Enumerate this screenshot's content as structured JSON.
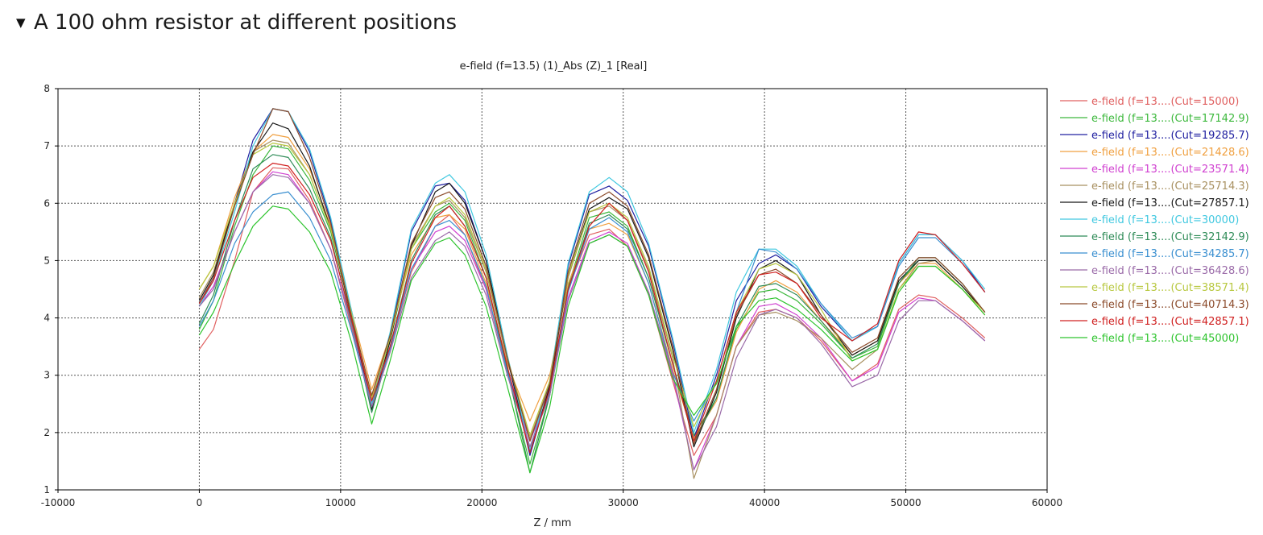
{
  "section": {
    "toggle_icon": "triangle-down-icon",
    "toggle_glyph": "▼",
    "title": "A 100 ohm resistor at different positions"
  },
  "chart_data": {
    "type": "line",
    "title": "e-field (f=13.5) (1)_Abs (Z)_1 [Real]",
    "xlabel": "Z / mm",
    "ylabel": "",
    "xlim": [
      -10000,
      60000
    ],
    "ylim": [
      1,
      8
    ],
    "xticks": [
      -10000,
      0,
      10000,
      20000,
      30000,
      40000,
      50000,
      60000
    ],
    "yticks": [
      1,
      2,
      3,
      4,
      5,
      6,
      7,
      8
    ],
    "grid": true,
    "legend_position": "right",
    "x": [
      0,
      1000,
      2500,
      3800,
      5200,
      6300,
      7800,
      9300,
      10800,
      12200,
      13500,
      15000,
      16700,
      17700,
      18800,
      20300,
      21800,
      23400,
      24800,
      26100,
      27600,
      29000,
      30300,
      31800,
      33500,
      35000,
      36600,
      38000,
      39600,
      40800,
      42300,
      44000,
      46200,
      48000,
      49500,
      50900,
      52100,
      54000,
      55600
    ],
    "series": [
      {
        "name": "e-field (f=13....(Cut=15000)",
        "color": "#e06060",
        "values": [
          3.45,
          3.8,
          5.0,
          6.2,
          6.62,
          6.6,
          6.05,
          5.2,
          3.8,
          2.55,
          3.45,
          4.8,
          5.6,
          5.8,
          5.45,
          4.5,
          3.05,
          1.85,
          2.8,
          4.5,
          5.45,
          5.55,
          5.25,
          4.4,
          2.9,
          1.6,
          2.3,
          3.5,
          4.1,
          4.15,
          4.0,
          3.6,
          2.9,
          3.2,
          4.15,
          4.4,
          4.35,
          4.0,
          3.65
        ]
      },
      {
        "name": "e-field (f=13....(Cut=17142.9)",
        "color": "#3cb83c",
        "values": [
          3.8,
          4.3,
          5.6,
          6.5,
          7.0,
          6.95,
          6.4,
          5.5,
          4.0,
          2.45,
          3.6,
          5.2,
          5.85,
          6.0,
          5.7,
          4.7,
          3.05,
          1.45,
          2.65,
          4.55,
          5.75,
          5.85,
          5.6,
          4.7,
          3.2,
          1.95,
          2.6,
          3.8,
          4.45,
          4.5,
          4.3,
          3.9,
          3.3,
          3.5,
          4.6,
          5.0,
          5.0,
          4.55,
          4.1
        ]
      },
      {
        "name": "e-field (f=13....(Cut=19285.7)",
        "color": "#2020a0",
        "values": [
          4.25,
          4.7,
          6.0,
          7.1,
          7.65,
          7.6,
          6.9,
          5.7,
          4.0,
          2.5,
          3.7,
          5.5,
          6.3,
          6.35,
          6.05,
          5.0,
          3.3,
          1.6,
          2.8,
          4.9,
          6.15,
          6.3,
          6.05,
          5.25,
          3.6,
          1.9,
          3.0,
          4.3,
          4.95,
          5.1,
          4.85,
          4.2,
          3.6,
          3.85,
          4.95,
          5.45,
          5.45,
          5.0,
          4.45
        ]
      },
      {
        "name": "e-field (f=13....(Cut=21428.6)",
        "color": "#f0a040",
        "values": [
          4.5,
          4.9,
          6.1,
          6.9,
          7.2,
          7.15,
          6.6,
          5.6,
          4.1,
          2.75,
          3.7,
          5.1,
          5.75,
          5.8,
          5.55,
          4.6,
          3.2,
          2.2,
          3.0,
          4.6,
          5.55,
          5.65,
          5.45,
          4.6,
          3.1,
          1.9,
          2.55,
          3.75,
          4.5,
          4.65,
          4.45,
          3.95,
          3.35,
          3.6,
          4.6,
          4.95,
          4.95,
          4.5,
          4.05
        ]
      },
      {
        "name": "e-field (f=13....(Cut=23571.4)",
        "color": "#d040d0",
        "values": [
          4.2,
          4.55,
          5.5,
          6.2,
          6.55,
          6.5,
          6.0,
          5.2,
          3.9,
          2.55,
          3.5,
          4.85,
          5.5,
          5.6,
          5.35,
          4.5,
          3.1,
          1.85,
          2.7,
          4.35,
          5.35,
          5.5,
          5.3,
          4.45,
          3.0,
          1.35,
          2.3,
          3.5,
          4.2,
          4.25,
          4.05,
          3.65,
          2.9,
          3.15,
          4.1,
          4.35,
          4.3,
          3.95,
          3.6
        ]
      },
      {
        "name": "e-field (f=13....(Cut=25714.3)",
        "color": "#a89060",
        "values": [
          4.35,
          4.8,
          6.0,
          6.9,
          7.1,
          7.05,
          6.5,
          5.55,
          4.0,
          2.6,
          3.65,
          5.25,
          5.95,
          6.05,
          5.75,
          4.8,
          3.25,
          1.9,
          2.85,
          4.7,
          5.85,
          5.95,
          5.7,
          4.85,
          3.3,
          1.2,
          2.3,
          3.5,
          4.05,
          4.1,
          3.95,
          3.65,
          3.1,
          3.45,
          4.5,
          4.95,
          5.0,
          4.55,
          4.1
        ]
      },
      {
        "name": "e-field (f=13....(Cut=27857.1)",
        "color": "#181818",
        "values": [
          4.3,
          4.75,
          6.0,
          6.9,
          7.4,
          7.3,
          6.65,
          5.55,
          4.0,
          2.4,
          3.6,
          5.25,
          6.2,
          6.35,
          6.0,
          5.0,
          3.3,
          1.65,
          2.8,
          4.75,
          5.9,
          6.1,
          5.9,
          5.05,
          3.45,
          1.75,
          2.7,
          4.0,
          4.85,
          5.0,
          4.75,
          4.05,
          3.35,
          3.6,
          4.65,
          5.0,
          5.0,
          4.55,
          4.1
        ]
      },
      {
        "name": "e-field (f=13....(Cut=30000)",
        "color": "#40c8e0",
        "values": [
          4.2,
          4.65,
          5.85,
          7.0,
          7.65,
          7.6,
          6.95,
          5.75,
          4.1,
          2.5,
          3.75,
          5.55,
          6.35,
          6.5,
          6.2,
          5.1,
          3.35,
          1.7,
          2.9,
          4.95,
          6.2,
          6.45,
          6.2,
          5.3,
          3.65,
          2.0,
          3.1,
          4.45,
          5.2,
          5.2,
          4.9,
          4.25,
          3.6,
          3.85,
          4.95,
          5.45,
          5.45,
          5.0,
          4.5
        ]
      },
      {
        "name": "e-field (f=13....(Cut=32142.9)",
        "color": "#2e8b57",
        "values": [
          3.9,
          4.4,
          5.7,
          6.6,
          6.85,
          6.8,
          6.25,
          5.4,
          3.9,
          2.35,
          3.5,
          5.0,
          5.8,
          5.95,
          5.6,
          4.7,
          3.1,
          1.3,
          2.65,
          4.5,
          5.65,
          5.8,
          5.55,
          4.7,
          3.2,
          1.85,
          2.6,
          3.85,
          4.55,
          4.6,
          4.4,
          3.95,
          3.3,
          3.55,
          4.6,
          5.05,
          5.05,
          4.6,
          4.1
        ]
      },
      {
        "name": "e-field (f=13....(Cut=34285.7)",
        "color": "#3a8fd0",
        "values": [
          3.85,
          4.3,
          5.3,
          5.85,
          6.15,
          6.2,
          5.75,
          5.0,
          3.75,
          2.45,
          3.45,
          4.85,
          5.6,
          5.7,
          5.45,
          4.55,
          3.05,
          1.75,
          2.7,
          4.45,
          5.55,
          5.75,
          5.5,
          4.6,
          3.05,
          2.2,
          2.9,
          4.1,
          5.2,
          5.15,
          4.85,
          4.25,
          3.65,
          3.85,
          4.9,
          5.4,
          5.4,
          4.95,
          4.45
        ]
      },
      {
        "name": "e-field (f=13....(Cut=36428.6)",
        "color": "#9a6aa8",
        "values": [
          4.2,
          4.5,
          5.5,
          6.2,
          6.5,
          6.45,
          6.0,
          5.2,
          3.85,
          2.45,
          3.4,
          4.7,
          5.35,
          5.5,
          5.25,
          4.4,
          3.0,
          1.75,
          2.65,
          4.3,
          5.3,
          5.45,
          5.25,
          4.45,
          3.05,
          1.35,
          2.1,
          3.3,
          4.05,
          4.15,
          4.0,
          3.55,
          2.8,
          3.0,
          3.95,
          4.3,
          4.3,
          3.95,
          3.6
        ]
      },
      {
        "name": "e-field (f=13....(Cut=38571.4)",
        "color": "#b8c840",
        "values": [
          4.5,
          4.9,
          6.0,
          6.85,
          7.05,
          7.0,
          6.5,
          5.55,
          4.05,
          2.6,
          3.65,
          5.2,
          5.95,
          6.1,
          5.8,
          4.85,
          3.3,
          1.95,
          2.9,
          4.75,
          5.85,
          6.0,
          5.75,
          4.9,
          3.35,
          2.1,
          2.9,
          4.1,
          4.85,
          4.95,
          4.75,
          4.15,
          3.25,
          3.45,
          4.5,
          4.9,
          4.9,
          4.5,
          4.1
        ]
      },
      {
        "name": "e-field (f=13....(Cut=40714.3)",
        "color": "#8b4a2a",
        "values": [
          4.25,
          4.7,
          5.95,
          6.85,
          7.65,
          7.6,
          6.8,
          5.65,
          4.0,
          2.65,
          3.7,
          5.3,
          6.1,
          6.2,
          5.9,
          4.9,
          3.3,
          1.85,
          2.85,
          4.8,
          6.0,
          6.2,
          5.95,
          5.1,
          3.5,
          1.8,
          2.75,
          4.05,
          4.75,
          4.85,
          4.6,
          4.05,
          3.4,
          3.65,
          4.7,
          5.05,
          5.05,
          4.6,
          4.1
        ]
      },
      {
        "name": "e-field (f=13....(Cut=42857.1)",
        "color": "#d02020",
        "values": [
          4.25,
          4.65,
          5.7,
          6.45,
          6.7,
          6.65,
          6.15,
          5.35,
          3.95,
          2.55,
          3.5,
          4.95,
          5.75,
          5.95,
          5.6,
          4.7,
          3.15,
          1.65,
          2.75,
          4.5,
          5.6,
          6.0,
          5.7,
          4.8,
          3.2,
          1.85,
          2.9,
          4.1,
          4.75,
          4.8,
          4.6,
          4.0,
          3.6,
          3.9,
          5.0,
          5.5,
          5.45,
          4.95,
          4.45
        ]
      },
      {
        "name": "e-field (f=13....(Cut=45000)",
        "color": "#2ec42e",
        "values": [
          3.7,
          4.1,
          4.95,
          5.6,
          5.95,
          5.9,
          5.5,
          4.8,
          3.55,
          2.15,
          3.25,
          4.65,
          5.3,
          5.4,
          5.1,
          4.2,
          2.8,
          1.3,
          2.45,
          4.2,
          5.3,
          5.45,
          5.25,
          4.4,
          2.95,
          2.3,
          2.85,
          3.85,
          4.3,
          4.35,
          4.15,
          3.8,
          3.25,
          3.45,
          4.45,
          4.9,
          4.9,
          4.5,
          4.05
        ]
      }
    ]
  }
}
